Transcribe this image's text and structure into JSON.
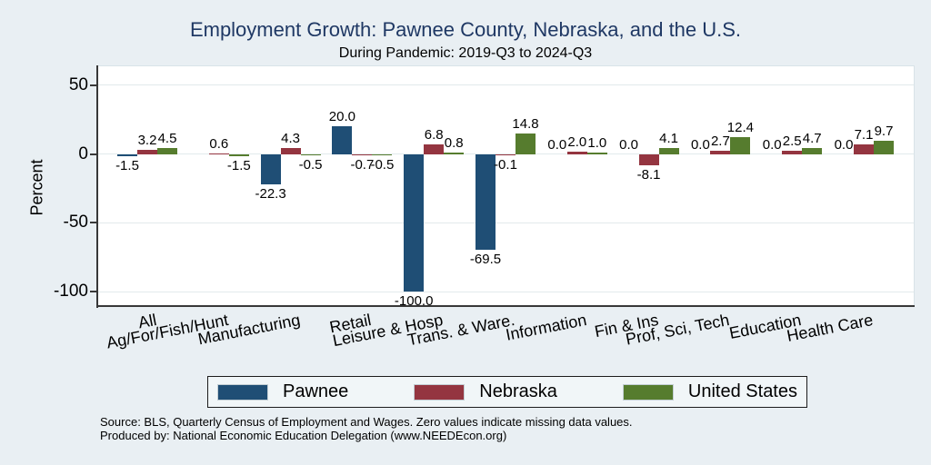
{
  "header": {
    "title": "Employment Growth: Pawnee County, Nebraska, and the U.S.",
    "subtitle": "During Pandemic: 2019-Q3 to 2024-Q3"
  },
  "chart_data": {
    "type": "bar",
    "categories": [
      "All",
      "Ag/For/Fish/Hunt",
      "Manufacturing",
      "Retail",
      "Leisure & Hosp",
      "Trans. & Ware.",
      "Information",
      "Fin & Ins",
      "Prof, Sci, Tech",
      "Education",
      "Health Care"
    ],
    "series": [
      {
        "name": "Pawnee",
        "color": "#1f4e75",
        "values": [
          -1.5,
          null,
          -22.3,
          20.0,
          -100.0,
          -69.5,
          0.0,
          0.0,
          0.0,
          0.0,
          0.0
        ]
      },
      {
        "name": "Nebraska",
        "color": "#943540",
        "values": [
          3.2,
          0.6,
          4.3,
          -0.7,
          6.8,
          -0.1,
          2.0,
          -8.1,
          2.7,
          2.5,
          7.1
        ]
      },
      {
        "name": "United States",
        "color": "#567c2e",
        "values": [
          4.5,
          -1.5,
          -0.5,
          -0.5,
          0.8,
          14.8,
          1.0,
          4.1,
          12.4,
          4.7,
          9.7
        ]
      }
    ],
    "xlabel": "",
    "ylabel": "Percent",
    "yticks": [
      50,
      0,
      -50,
      -100
    ],
    "ylim": [
      -110.5,
      64.5
    ],
    "grid": true,
    "legend_position": "bottom",
    "value_labels_shown": true
  },
  "footnotes": {
    "line1": "Source: BLS, Quarterly Census of Employment and Wages. Zero values indicate missing data values.",
    "line2": "Produced by: National Economic Education Delegation (www.NEEDEcon.org)"
  },
  "colors": {
    "background": "#e9eff3",
    "plot_background": "#ffffff",
    "gridline": "#e2eaec",
    "axis": "#383838",
    "title_text": "#1f3864"
  }
}
